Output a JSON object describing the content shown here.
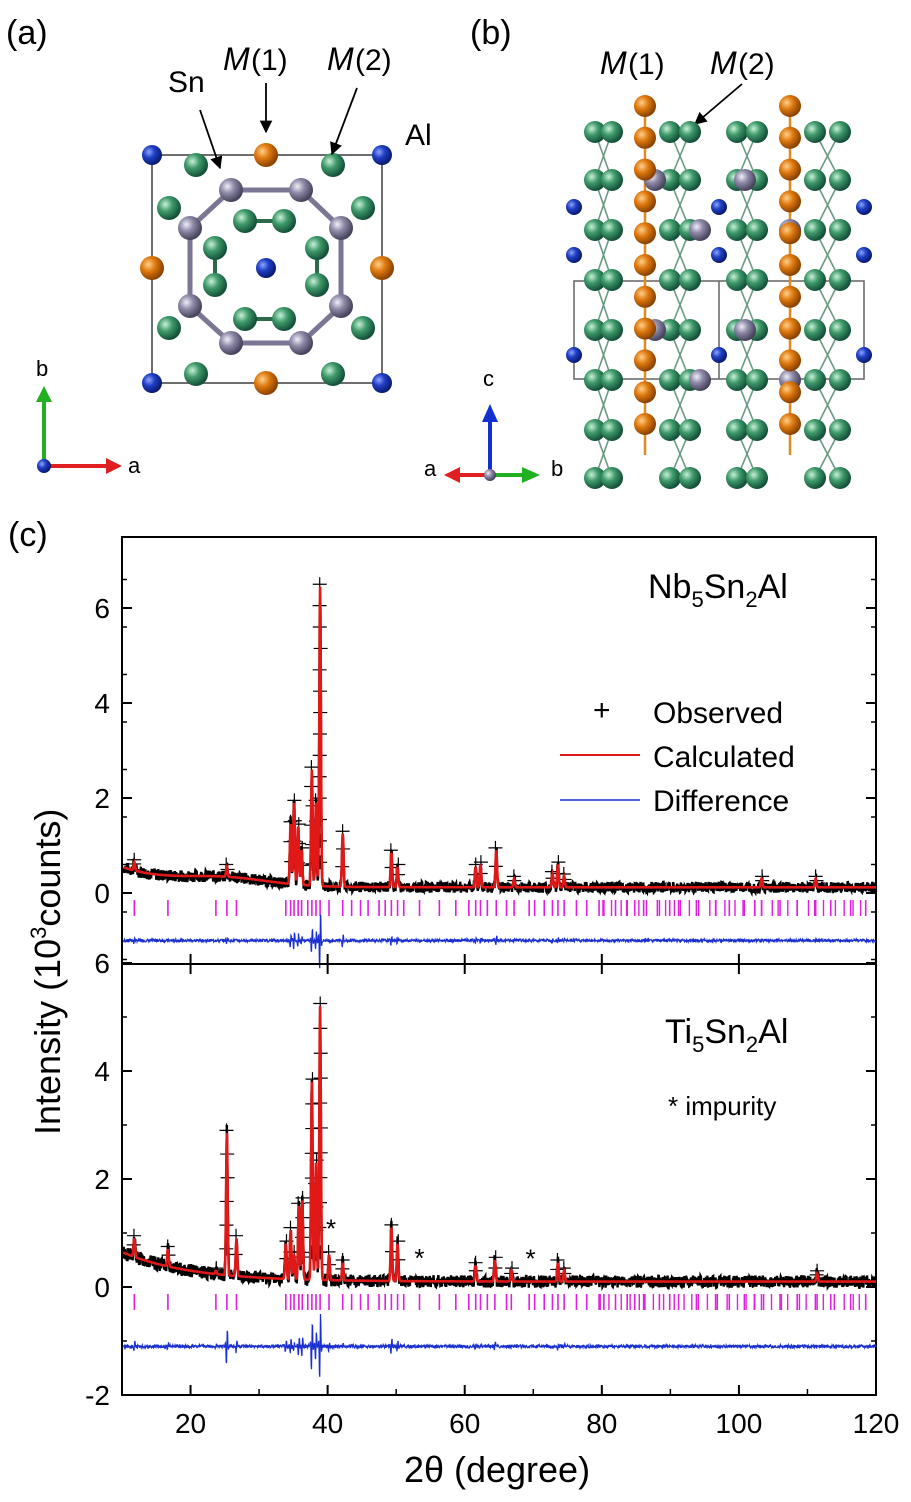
{
  "colors": {
    "al": "#1f3fc4",
    "m1": "#e07a10",
    "m2": "#3f9a6a",
    "sn": "#8c88a6",
    "bond_sn": "#7a7694",
    "bond_m": "#6a9a84",
    "observed": "#000000",
    "calculated": "#e01818",
    "difference": "#1a2fd0",
    "bragg": "#e020e0",
    "axis_a": "#e02020",
    "axis_b": "#20b020",
    "axis_c": "#1030d0"
  },
  "panel_a": {
    "label": "(a)",
    "sn": "Sn",
    "m1_letter": "M",
    "m1_index": " (1)",
    "m2_letter": "M",
    "m2_index": " (2)",
    "al": "Al",
    "axis_b": "b",
    "axis_a": "a"
  },
  "panel_b": {
    "label": "(b)",
    "m1_letter": "M",
    "m1_index": " (1)",
    "m2_letter": "M",
    "m2_index": " (2)",
    "axis_c": "c",
    "axis_a": "a",
    "axis_b": "b"
  },
  "panel_c": {
    "label": "(c)",
    "ylabel_main": "Intensity (10",
    "ylabel_sup": "3",
    "ylabel_end": "counts)",
    "xlabel": "2θ (degree)",
    "legend": {
      "observed_marker": "+",
      "observed": "Observed",
      "calculated": "Calculated",
      "difference": "Difference"
    },
    "top": {
      "compound": {
        "base": "Nb",
        "s1": "5",
        "mid": "Sn",
        "s2": "2",
        "end": "Al"
      }
    },
    "bottom": {
      "compound": {
        "base": "Ti",
        "s1": "5",
        "mid": "Sn",
        "s2": "2",
        "end": "Al"
      },
      "impurity_marker": "*",
      "impurity_note": "* impurity"
    }
  },
  "chart_data": [
    {
      "type": "line",
      "series": [
        {
          "name": "Observed",
          "style": "plus-markers"
        },
        {
          "name": "Calculated"
        },
        {
          "name": "Difference"
        }
      ],
      "xlim": [
        10,
        120
      ],
      "ylim": [
        -1.4,
        7.2
      ],
      "y_ticks": [
        0,
        2,
        4,
        6
      ],
      "peaks_calculated": [
        {
          "x": 11.8,
          "y": 0.65
        },
        {
          "x": 25.3,
          "y": 0.55
        },
        {
          "x": 34.6,
          "y": 1.45
        },
        {
          "x": 35.1,
          "y": 1.9
        },
        {
          "x": 35.7,
          "y": 1.4
        },
        {
          "x": 36.2,
          "y": 0.9
        },
        {
          "x": 37.7,
          "y": 2.6
        },
        {
          "x": 38.3,
          "y": 1.9
        },
        {
          "x": 38.9,
          "y": 6.45
        },
        {
          "x": 42.2,
          "y": 1.25
        },
        {
          "x": 49.3,
          "y": 0.85
        },
        {
          "x": 50.2,
          "y": 0.55
        },
        {
          "x": 61.6,
          "y": 0.55
        },
        {
          "x": 62.3,
          "y": 0.6
        },
        {
          "x": 64.6,
          "y": 0.9
        },
        {
          "x": 67.2,
          "y": 0.3
        },
        {
          "x": 72.8,
          "y": 0.4
        },
        {
          "x": 73.6,
          "y": 0.6
        },
        {
          "x": 74.5,
          "y": 0.35
        },
        {
          "x": 103.3,
          "y": 0.3
        },
        {
          "x": 111.2,
          "y": 0.3
        }
      ],
      "bragg_positions": [
        11.8,
        16.7,
        23.7,
        25.3,
        26.7,
        33.9,
        34.6,
        35.1,
        35.7,
        36.2,
        37.1,
        37.7,
        38.3,
        38.9,
        40.2,
        42.2,
        43.5,
        44.8,
        45.9,
        47.5,
        48.4,
        49.3,
        50.2,
        51.1,
        53.4,
        56.3,
        58.7,
        60.6,
        61.6,
        62.3,
        63.3,
        64.6,
        66.1,
        67.2,
        69.4,
        70.2,
        71.6,
        72.8,
        73.6,
        74.5,
        76.3,
        77.8,
        79.6,
        80.3,
        82.0,
        83.7,
        84.8,
        86.1,
        88.4,
        89.9,
        91.2,
        93.8,
        96.6,
        98.6,
        100.8,
        102.3,
        103.3,
        106.0,
        108.5,
        111.2,
        113.4,
        116.3,
        118.5
      ],
      "difference_offset": -1.0
    },
    {
      "type": "line",
      "series": [
        {
          "name": "Observed",
          "style": "plus-markers"
        },
        {
          "name": "Calculated"
        },
        {
          "name": "Difference"
        }
      ],
      "xlim": [
        10,
        120
      ],
      "ylim": [
        -2.0,
        6.0
      ],
      "y_ticks": [
        -2,
        0,
        2,
        4,
        6
      ],
      "peaks_calculated": [
        {
          "x": 11.8,
          "y": 0.9
        },
        {
          "x": 16.7,
          "y": 0.7
        },
        {
          "x": 23.7,
          "y": 0.3
        },
        {
          "x": 25.3,
          "y": 2.85
        },
        {
          "x": 26.7,
          "y": 0.9
        },
        {
          "x": 33.9,
          "y": 0.8
        },
        {
          "x": 34.6,
          "y": 1.05
        },
        {
          "x": 35.1,
          "y": 0.6
        },
        {
          "x": 35.8,
          "y": 1.5
        },
        {
          "x": 36.3,
          "y": 1.6
        },
        {
          "x": 37.7,
          "y": 3.8
        },
        {
          "x": 38.3,
          "y": 2.3
        },
        {
          "x": 38.9,
          "y": 5.2
        },
        {
          "x": 40.2,
          "y": 0.6
        },
        {
          "x": 42.2,
          "y": 0.45
        },
        {
          "x": 49.3,
          "y": 1.1
        },
        {
          "x": 50.2,
          "y": 0.8
        },
        {
          "x": 61.6,
          "y": 0.4
        },
        {
          "x": 64.4,
          "y": 0.5
        },
        {
          "x": 66.8,
          "y": 0.3
        },
        {
          "x": 73.6,
          "y": 0.45
        },
        {
          "x": 74.5,
          "y": 0.3
        },
        {
          "x": 111.4,
          "y": 0.25
        }
      ],
      "impurity_positions": [
        40.5,
        53.4,
        69.6
      ],
      "bragg_positions": [
        11.8,
        16.7,
        23.7,
        25.3,
        26.7,
        33.9,
        34.6,
        35.1,
        35.8,
        36.3,
        37.1,
        37.7,
        38.3,
        38.9,
        40.2,
        42.2,
        43.5,
        44.8,
        45.9,
        47.5,
        48.4,
        49.3,
        50.2,
        51.1,
        53.4,
        56.3,
        58.7,
        60.6,
        61.6,
        62.3,
        63.3,
        64.4,
        66.1,
        66.8,
        69.4,
        70.2,
        71.6,
        72.8,
        73.6,
        74.5,
        76.3,
        77.8,
        79.6,
        80.3,
        82.0,
        83.7,
        84.8,
        86.1,
        88.4,
        89.9,
        91.2,
        93.8,
        96.6,
        98.6,
        100.8,
        102.3,
        103.3,
        106.0,
        108.5,
        111.4,
        113.4,
        116.3,
        118.5
      ],
      "difference_offset": -1.1,
      "x_ticks": [
        20,
        40,
        60,
        80,
        100,
        120
      ],
      "xlabel": "2θ (degree)"
    }
  ]
}
